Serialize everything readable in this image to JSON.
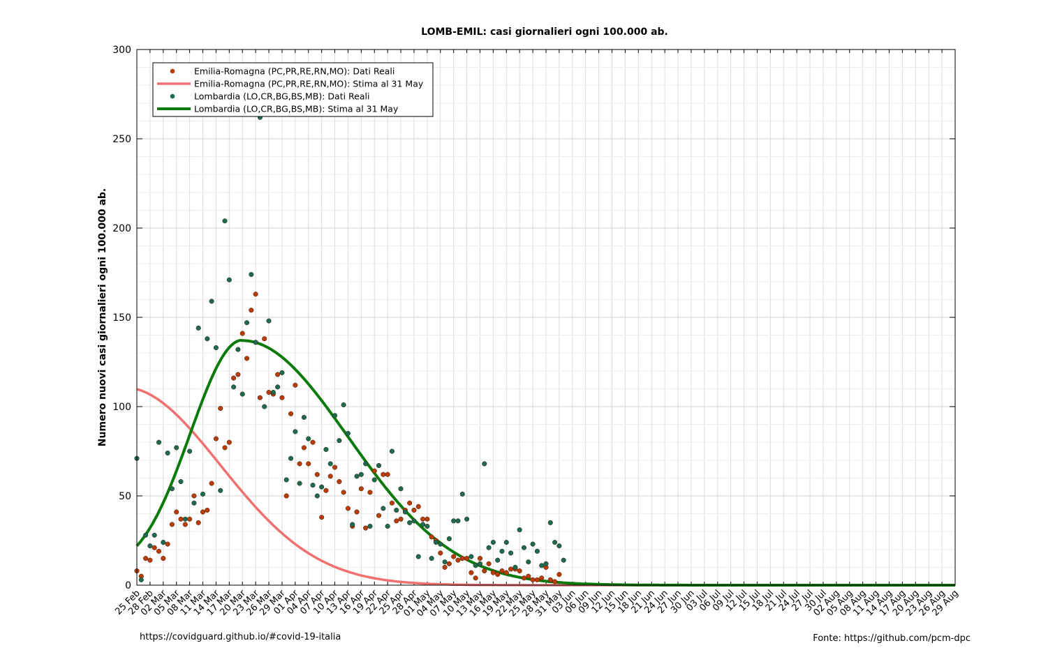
{
  "footer_left": "https://covidguard.github.io/#covid-19-italia",
  "footer_right": "Fonte: https://github.com/pcm-dpc",
  "chart_data": {
    "type": "scatter",
    "title": "LOMB-EMIL: casi giornalieri ogni 100.000 ab.",
    "xlabel": "",
    "ylabel": "Numero nuovi casi giornalieri ogni 100.000 ab.",
    "ylim": [
      0,
      300
    ],
    "xlim": [
      0,
      186
    ],
    "yticks": [
      0,
      50,
      100,
      150,
      200,
      250,
      300
    ],
    "grid": true,
    "legend_position": "top-left",
    "xtick_labels": [
      "25 Feb",
      "28 Feb",
      "02 Mar",
      "05 Mar",
      "08 Mar",
      "11 Mar",
      "14 Mar",
      "17 Mar",
      "20 Mar",
      "23 Mar",
      "26 Mar",
      "29 Mar",
      "01 Apr",
      "04 Apr",
      "07 Apr",
      "10 Apr",
      "13 Apr",
      "16 Apr",
      "19 Apr",
      "22 Apr",
      "25 Apr",
      "28 Apr",
      "01 May",
      "04 May",
      "07 May",
      "10 May",
      "13 May",
      "16 May",
      "19 May",
      "22 May",
      "25 May",
      "28 May",
      "31 May",
      "03 Jun",
      "06 Jun",
      "09 Jun",
      "12 Jun",
      "15 Jun",
      "18 Jun",
      "21 Jun",
      "24 Jun",
      "27 Jun",
      "30 Jun",
      "03 Jul",
      "06 Jul",
      "09 Jul",
      "12 Jul",
      "15 Jul",
      "18 Jul",
      "21 Jul",
      "24 Jul",
      "27 Jul",
      "30 Jul",
      "02 Aug",
      "05 Aug",
      "08 Aug",
      "11 Aug",
      "14 Aug",
      "17 Aug",
      "20 Aug",
      "23 Aug",
      "26 Aug",
      "29 Aug"
    ],
    "series": [
      {
        "name": "Emilia-Romagna (PC,PR,RE,RN,MO): Dati Reali",
        "kind": "points",
        "color": "#b83c08",
        "x_start_label": "25 Feb",
        "values": [
          8,
          5,
          15,
          14,
          21,
          19,
          15,
          23,
          34,
          41,
          37,
          34,
          37,
          50,
          35,
          41,
          42,
          57,
          82,
          99,
          77,
          80,
          116,
          118,
          141,
          127,
          154,
          163,
          105,
          138,
          108,
          107,
          118,
          105,
          50,
          96,
          112,
          68,
          77,
          68,
          80,
          62,
          38,
          53,
          61,
          66,
          58,
          52,
          43,
          33,
          41,
          54,
          32,
          52,
          64,
          39,
          62,
          62,
          46,
          36,
          37,
          42,
          46,
          42,
          44,
          37,
          37,
          27,
          25,
          18,
          10,
          12,
          16,
          14,
          15,
          15,
          7,
          4,
          15,
          8,
          12,
          7,
          6,
          8,
          7,
          9,
          9,
          8,
          4,
          5,
          3,
          3,
          4,
          10,
          3,
          2,
          6
        ]
      },
      {
        "name": "Emilia-Romagna (PC,PR,RE,RN,MO): Stima al 31 May",
        "kind": "line",
        "color": "#f07070",
        "curve": {
          "peak_value": 110.8,
          "peak_label": "22 Mar",
          "rise_width_days": 10.5,
          "fall_width_days": 22,
          "end_label": "29 Aug"
        }
      },
      {
        "name": "Lombardia (LO,CR,BG,BS,MB): Dati Reali",
        "kind": "points",
        "color": "#1a6b50",
        "x_start_label": "25 Feb",
        "values": [
          71,
          3,
          28,
          22,
          28,
          80,
          24,
          74,
          54,
          77,
          58,
          37,
          75,
          46,
          144,
          51,
          138,
          159,
          133,
          53,
          204,
          171,
          111,
          132,
          107,
          147,
          174,
          136,
          262,
          100,
          148,
          108,
          111,
          119,
          59,
          71,
          86,
          57,
          94,
          82,
          56,
          50,
          55,
          76,
          68,
          95,
          81,
          101,
          85,
          34,
          61,
          62,
          68,
          33,
          59,
          67,
          43,
          33,
          75,
          42,
          54,
          41,
          35,
          36,
          16,
          34,
          33,
          15,
          24,
          23,
          13,
          26,
          36,
          36,
          51,
          37,
          16,
          11,
          12,
          68,
          21,
          24,
          14,
          19,
          24,
          18,
          10,
          31,
          21,
          13,
          23,
          19,
          11,
          12,
          35,
          24,
          22,
          14
        ]
      },
      {
        "name": "Lombardia (LO,CR,BG,BS,MB): Stima al 31 May",
        "kind": "line",
        "color": "#0a7a0a",
        "curve": {
          "peak_value": 137,
          "peak_label": "20 Mar",
          "rise_width_days": 12,
          "fall_width_days": 24,
          "start_value": 22,
          "end_label": "29 Aug"
        }
      }
    ]
  }
}
